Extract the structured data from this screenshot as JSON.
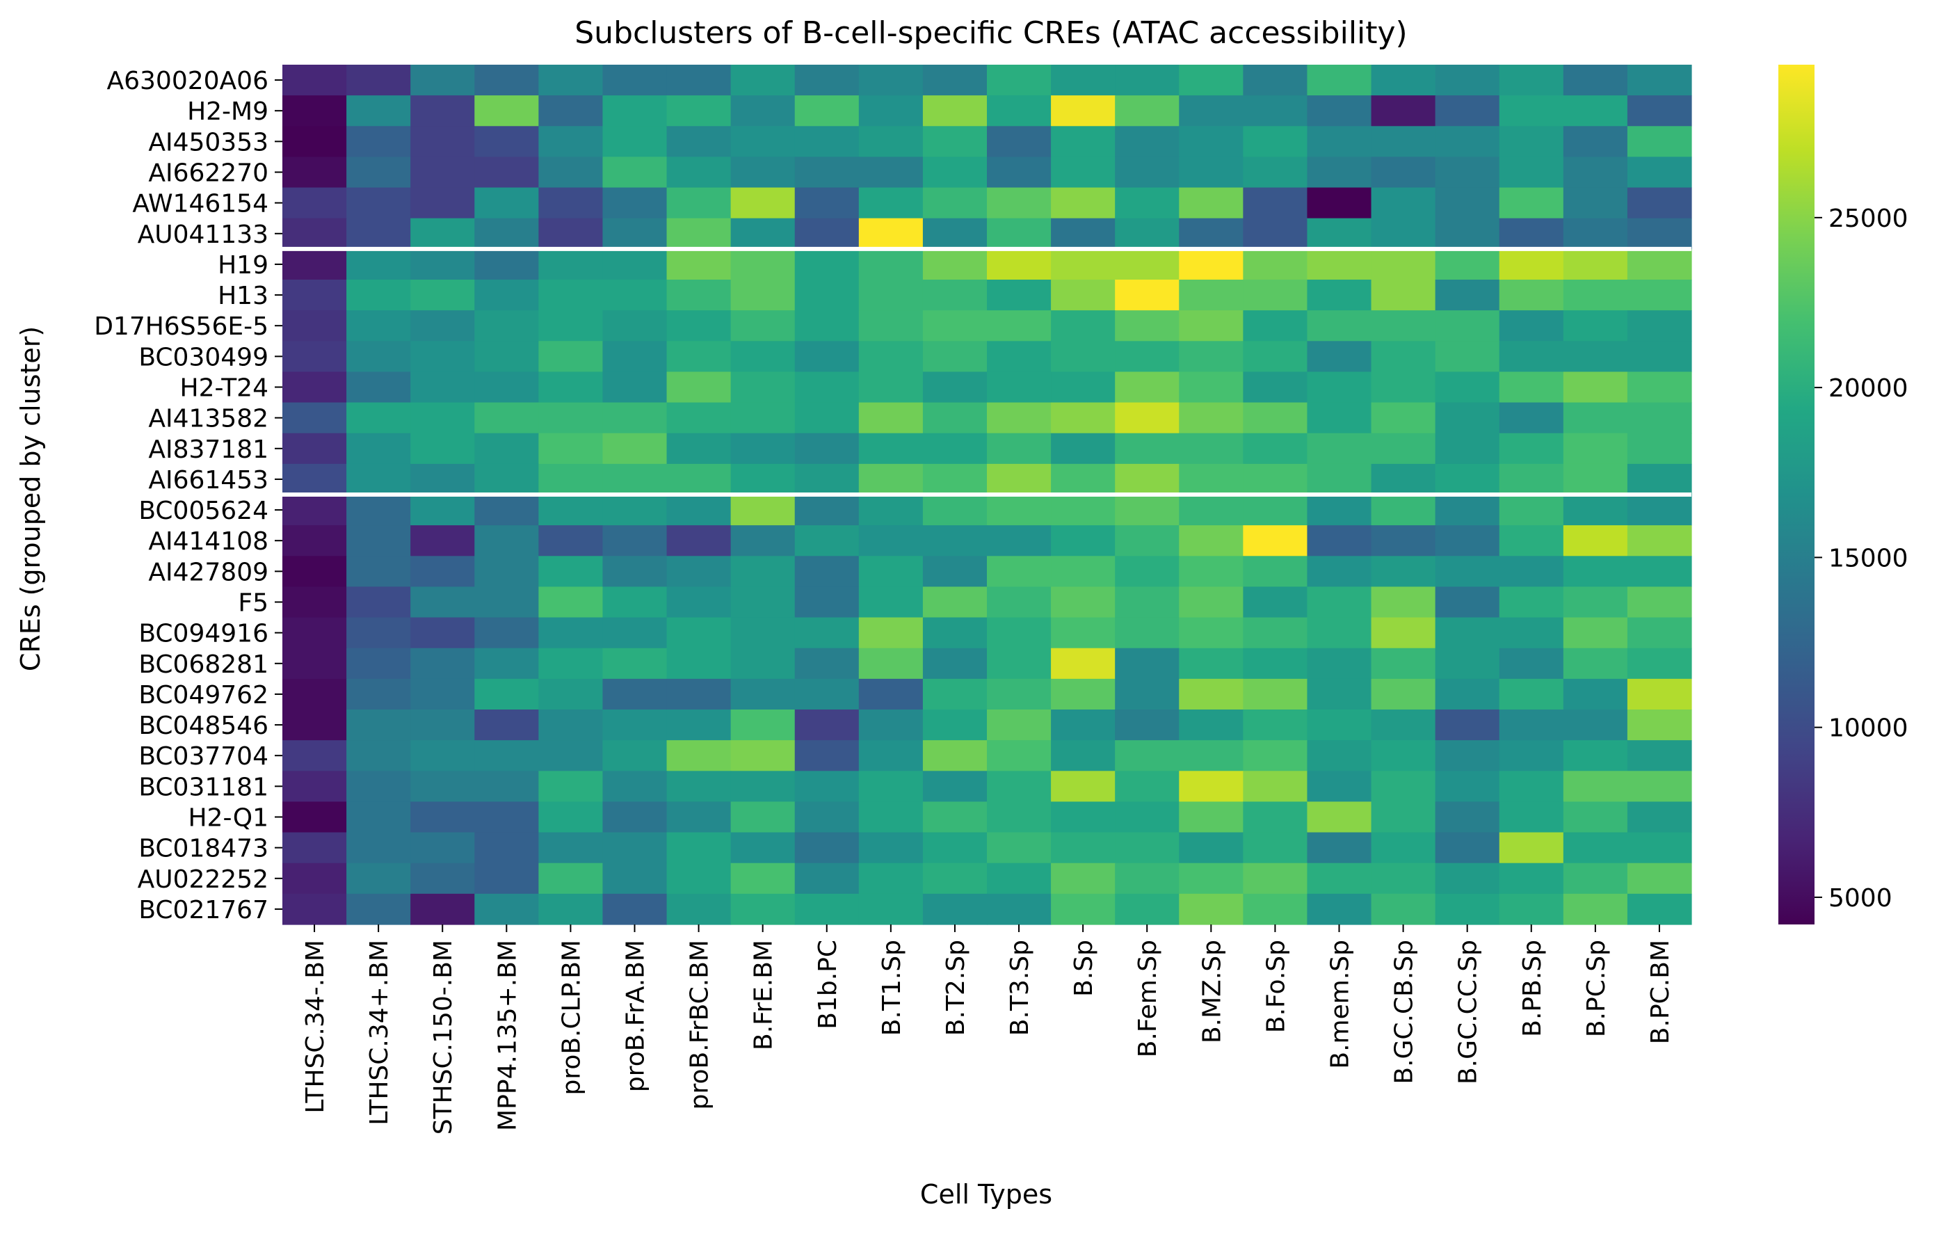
{
  "chart_data": {
    "type": "heatmap",
    "title": "Subclusters of B-cell-specific CREs (ATAC accessibility)",
    "xlabel": "Cell Types",
    "ylabel": "CREs (grouped by cluster)",
    "colormap": "viridis",
    "colorbar": {
      "min": 4200,
      "max": 29500,
      "ticks": [
        5000,
        10000,
        15000,
        20000,
        25000
      ]
    },
    "columns": [
      "LTHSC.34-.BM",
      "LTHSC.34+.BM",
      "STHSC.150-.BM",
      "MPP4.135+.BM",
      "proB.CLP.BM",
      "proB.FrA.BM",
      "proB.FrBC.BM",
      "B.FrE.BM",
      "B1b.PC",
      "B.T1.Sp",
      "B.T2.Sp",
      "B.T3.Sp",
      "B.Sp",
      "B.Fem.Sp",
      "B.MZ.Sp",
      "B.Fo.Sp",
      "B.mem.Sp",
      "B.GC.CB.Sp",
      "B.GC.CC.Sp",
      "B.PB.Sp",
      "B.PC.Sp",
      "B.PC.BM"
    ],
    "cluster_boundaries_after_row": [
      5,
      13
    ],
    "rows": [
      {
        "label": "A630020A06",
        "values": [
          7000,
          8000,
          15000,
          13000,
          16000,
          14000,
          14000,
          18000,
          15000,
          16000,
          15000,
          20000,
          18000,
          18000,
          20000,
          15000,
          21000,
          17000,
          16000,
          18000,
          14000,
          16000
        ]
      },
      {
        "label": "H2-M9",
        "values": [
          4500,
          16000,
          9000,
          24000,
          13000,
          19000,
          20000,
          16000,
          22000,
          17000,
          25000,
          19000,
          29000,
          23000,
          16000,
          16000,
          14000,
          6000,
          12000,
          19000,
          19000,
          12000
        ]
      },
      {
        "label": "AI450353",
        "values": [
          4300,
          12000,
          9000,
          10000,
          16000,
          19000,
          16000,
          17000,
          17000,
          18000,
          20000,
          13000,
          19000,
          16000,
          17000,
          19000,
          16000,
          16000,
          16000,
          18000,
          14000,
          21000
        ]
      },
      {
        "label": "AI662270",
        "values": [
          5000,
          13000,
          9000,
          9000,
          15000,
          21000,
          18000,
          16000,
          15000,
          15000,
          19000,
          14000,
          19000,
          16000,
          17000,
          18000,
          15000,
          14000,
          15000,
          18000,
          15000,
          17000
        ]
      },
      {
        "label": "AW146154",
        "values": [
          8500,
          10000,
          9000,
          17000,
          10000,
          14000,
          21000,
          26000,
          12000,
          19000,
          21000,
          23000,
          25000,
          19000,
          24000,
          11000,
          4200,
          17000,
          15000,
          22000,
          15000,
          11000
        ]
      },
      {
        "label": "AU041133",
        "values": [
          7500,
          10000,
          18000,
          15000,
          9000,
          15000,
          23000,
          17000,
          11000,
          29500,
          16000,
          21000,
          14000,
          18000,
          13000,
          11000,
          18000,
          17000,
          15000,
          12000,
          14000,
          13000
        ]
      },
      {
        "label": "H19",
        "values": [
          6000,
          17000,
          16000,
          14000,
          18000,
          18000,
          24000,
          23000,
          19000,
          21000,
          24000,
          27000,
          26000,
          26000,
          29500,
          24000,
          25000,
          25000,
          22000,
          27000,
          26000,
          24000
        ]
      },
      {
        "label": "H13",
        "values": [
          8500,
          19000,
          20000,
          17000,
          19000,
          19000,
          21000,
          23000,
          19000,
          21000,
          21000,
          19000,
          25000,
          29500,
          23000,
          23000,
          19000,
          25000,
          16000,
          23000,
          22000,
          22000
        ]
      },
      {
        "label": "D17H6S56E-5",
        "values": [
          8000,
          17000,
          16000,
          18000,
          19000,
          18000,
          19000,
          21000,
          19000,
          21000,
          22000,
          22000,
          20000,
          23000,
          24000,
          19000,
          21000,
          21000,
          21000,
          17000,
          19000,
          18000
        ]
      },
      {
        "label": "BC030499",
        "values": [
          8500,
          16000,
          17000,
          18000,
          21000,
          17000,
          20000,
          19000,
          17000,
          20000,
          21000,
          19000,
          20000,
          20000,
          21000,
          20000,
          16000,
          20000,
          21000,
          18000,
          18000,
          18000
        ]
      },
      {
        "label": "H2-T24",
        "values": [
          7000,
          14000,
          17000,
          17000,
          19000,
          17000,
          23000,
          20000,
          19000,
          20000,
          18000,
          19000,
          19000,
          24000,
          22000,
          18000,
          19000,
          20000,
          19000,
          22000,
          24000,
          22000
        ]
      },
      {
        "label": "AI413582",
        "values": [
          11000,
          19000,
          19000,
          21000,
          21000,
          21000,
          20000,
          20000,
          19000,
          24000,
          21000,
          24000,
          25000,
          27500,
          24000,
          23000,
          19000,
          22000,
          18000,
          16000,
          21000,
          21000
        ]
      },
      {
        "label": "AI837181",
        "values": [
          8000,
          17000,
          19000,
          18000,
          22000,
          23000,
          18000,
          17000,
          16000,
          19000,
          19000,
          21000,
          18000,
          21000,
          21000,
          20000,
          21000,
          21000,
          18000,
          20000,
          22000,
          21000
        ]
      },
      {
        "label": "AI661453",
        "values": [
          10000,
          17000,
          16000,
          18000,
          21000,
          21000,
          21000,
          19000,
          18000,
          23000,
          22000,
          25000,
          22000,
          25000,
          22000,
          22000,
          21000,
          18000,
          19000,
          21000,
          22000,
          18000
        ]
      },
      {
        "label": "BC005624",
        "values": [
          6500,
          13000,
          17000,
          13000,
          18000,
          18000,
          17000,
          25000,
          15000,
          18000,
          21000,
          22000,
          22000,
          23000,
          21000,
          21000,
          17000,
          21000,
          16000,
          21000,
          18000,
          17000
        ]
      },
      {
        "label": "AI414108",
        "values": [
          5500,
          13000,
          7000,
          15000,
          11000,
          13000,
          9000,
          15000,
          18000,
          17000,
          17000,
          17000,
          19000,
          21000,
          24000,
          29500,
          12000,
          13000,
          14000,
          20000,
          27000,
          25000
        ]
      },
      {
        "label": "AI427809",
        "values": [
          4500,
          13000,
          12000,
          15000,
          19000,
          15000,
          16000,
          18000,
          14000,
          19000,
          16000,
          22000,
          22000,
          20000,
          22000,
          21000,
          17000,
          18000,
          17000,
          17000,
          19000,
          19000
        ]
      },
      {
        "label": "F5",
        "values": [
          5000,
          10000,
          15000,
          15000,
          22000,
          19000,
          17000,
          18000,
          14000,
          19000,
          23000,
          21000,
          23000,
          21000,
          23000,
          18000,
          20000,
          24000,
          14000,
          20000,
          21000,
          23000
        ]
      },
      {
        "label": "BC094916",
        "values": [
          5500,
          11000,
          10000,
          13000,
          17000,
          17000,
          19000,
          18000,
          18000,
          24500,
          18000,
          20000,
          22000,
          21000,
          22000,
          21000,
          20000,
          25500,
          18000,
          18000,
          23000,
          21000
        ]
      },
      {
        "label": "BC068281",
        "values": [
          5500,
          12000,
          14000,
          16000,
          19000,
          20000,
          19000,
          18000,
          15000,
          23000,
          16000,
          20000,
          28000,
          16000,
          20000,
          19000,
          18000,
          21000,
          18000,
          16000,
          21000,
          20000
        ]
      },
      {
        "label": "BC049762",
        "values": [
          5000,
          13000,
          14000,
          19000,
          18000,
          13000,
          13000,
          16000,
          16000,
          12000,
          20000,
          21000,
          23000,
          16000,
          25000,
          24000,
          18000,
          23000,
          17000,
          20000,
          17000,
          26500
        ]
      },
      {
        "label": "BC048546",
        "values": [
          5000,
          15000,
          15000,
          10000,
          16000,
          17000,
          17000,
          22000,
          9000,
          16000,
          19000,
          23000,
          17000,
          15000,
          18000,
          20000,
          19000,
          18000,
          11000,
          16000,
          16000,
          24500
        ]
      },
      {
        "label": "BC037704",
        "values": [
          8500,
          15000,
          16000,
          16000,
          16000,
          18000,
          24000,
          24500,
          11000,
          17000,
          24000,
          22000,
          18000,
          21000,
          21000,
          22000,
          18000,
          19000,
          16000,
          17000,
          19000,
          18000
        ]
      },
      {
        "label": "BC031181",
        "values": [
          7000,
          14000,
          15000,
          15000,
          20000,
          16000,
          18000,
          18000,
          17000,
          19000,
          17000,
          20000,
          26000,
          20000,
          27500,
          25000,
          17000,
          20000,
          17000,
          19000,
          23000,
          23000
        ]
      },
      {
        "label": "H2-Q1",
        "values": [
          4500,
          14000,
          12000,
          12000,
          19000,
          14000,
          16000,
          21000,
          16000,
          19000,
          21000,
          20000,
          19000,
          19000,
          23000,
          20000,
          25000,
          20000,
          15000,
          19000,
          21000,
          18000
        ]
      },
      {
        "label": "BC018473",
        "values": [
          8000,
          14000,
          14000,
          12000,
          16000,
          16000,
          19000,
          17000,
          14000,
          17000,
          19000,
          21000,
          20000,
          20000,
          18000,
          20000,
          15000,
          19000,
          14000,
          26000,
          19000,
          19000
        ]
      },
      {
        "label": "AU022252",
        "values": [
          6500,
          15000,
          13000,
          12000,
          21000,
          16000,
          19000,
          22000,
          16000,
          19000,
          20000,
          19000,
          23000,
          21000,
          22000,
          23000,
          20000,
          20000,
          18000,
          19000,
          21000,
          23000
        ]
      },
      {
        "label": "BC021767",
        "values": [
          7000,
          13000,
          6000,
          16000,
          18000,
          12000,
          18000,
          20000,
          19000,
          19000,
          17000,
          17000,
          22000,
          20000,
          24000,
          22000,
          17000,
          21000,
          19000,
          20000,
          23000,
          19000
        ]
      }
    ]
  }
}
